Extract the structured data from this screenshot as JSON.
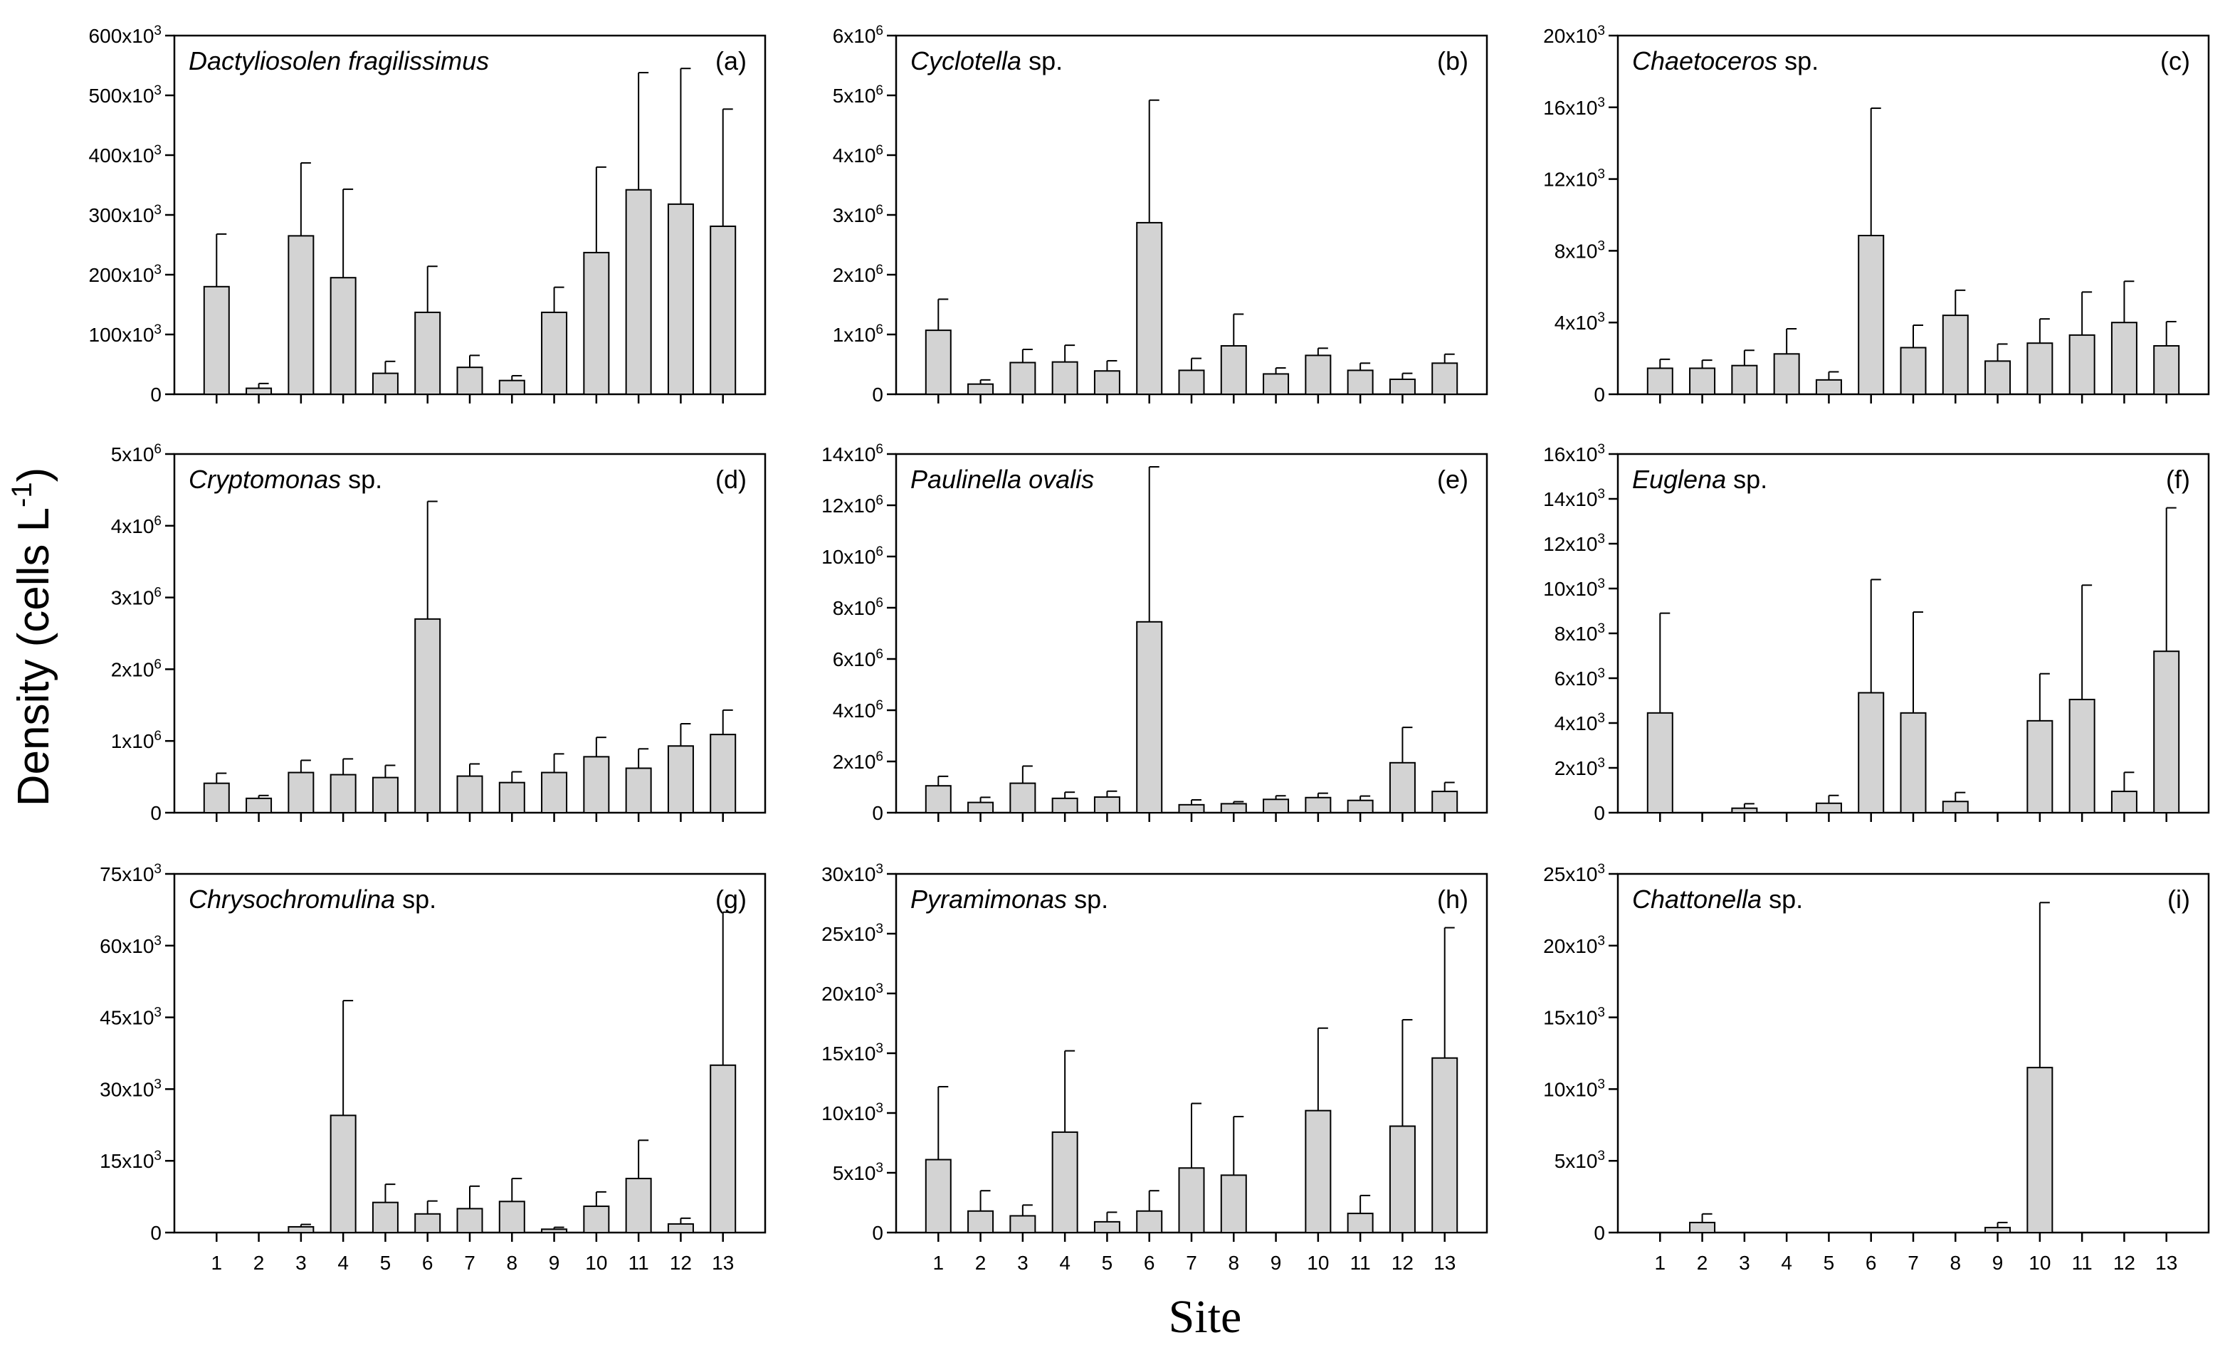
{
  "figure": {
    "ylabel": "Density (cells L",
    "ylabel_sup": "-1",
    "ylabel_close": ")",
    "xlabel": "Site"
  },
  "chart_data": [
    {
      "type": "bar",
      "letter": "(a)",
      "title_italic": "Dactyliosolen fragilissimus",
      "title_plain": "",
      "categories": [
        "1",
        "2",
        "3",
        "4",
        "5",
        "6",
        "7",
        "8",
        "9",
        "10",
        "11",
        "12",
        "13"
      ],
      "values": [
        180000,
        10000,
        265000,
        195000,
        35000,
        137000,
        45000,
        23000,
        137000,
        237000,
        342000,
        318000,
        281000
      ],
      "error_plus": [
        88000,
        8000,
        122000,
        148000,
        20000,
        77000,
        20000,
        8000,
        42000,
        143000,
        196000,
        227000,
        196000
      ],
      "ylim": [
        0,
        600000
      ],
      "yticks": [
        0,
        100000,
        200000,
        300000,
        400000,
        500000,
        600000
      ],
      "ytick_labels": [
        {
          "m": "0",
          "e": ""
        },
        {
          "m": "100x10",
          "e": "3"
        },
        {
          "m": "200x10",
          "e": "3"
        },
        {
          "m": "300x10",
          "e": "3"
        },
        {
          "m": "400x10",
          "e": "3"
        },
        {
          "m": "500x10",
          "e": "3"
        },
        {
          "m": "600x10",
          "e": "3"
        }
      ],
      "show_x_labels": false
    },
    {
      "type": "bar",
      "letter": "(b)",
      "title_italic": "Cyclotella",
      "title_plain": " sp.",
      "categories": [
        "1",
        "2",
        "3",
        "4",
        "5",
        "6",
        "7",
        "8",
        "9",
        "10",
        "11",
        "12",
        "13"
      ],
      "values": [
        1070000,
        170000,
        530000,
        540000,
        390000,
        2870000,
        400000,
        810000,
        340000,
        650000,
        400000,
        250000,
        520000
      ],
      "error_plus": [
        520000,
        70000,
        220000,
        280000,
        170000,
        2050000,
        200000,
        530000,
        100000,
        120000,
        120000,
        100000,
        150000
      ],
      "ylim": [
        0,
        6000000
      ],
      "yticks": [
        0,
        1000000,
        2000000,
        3000000,
        4000000,
        5000000,
        6000000
      ],
      "ytick_labels": [
        {
          "m": "0",
          "e": ""
        },
        {
          "m": "1x10",
          "e": "6"
        },
        {
          "m": "2x10",
          "e": "6"
        },
        {
          "m": "3x10",
          "e": "6"
        },
        {
          "m": "4x10",
          "e": "6"
        },
        {
          "m": "5x10",
          "e": "6"
        },
        {
          "m": "6x10",
          "e": "6"
        }
      ],
      "show_x_labels": false
    },
    {
      "type": "bar",
      "letter": "(c)",
      "title_italic": "Chaetoceros",
      "title_plain": "  sp.",
      "categories": [
        "1",
        "2",
        "3",
        "4",
        "5",
        "6",
        "7",
        "8",
        "9",
        "10",
        "11",
        "12",
        "13"
      ],
      "values": [
        1450,
        1450,
        1600,
        2250,
        800,
        8850,
        2600,
        4400,
        1850,
        2850,
        3300,
        4000,
        2700
      ],
      "error_plus": [
        500,
        450,
        850,
        1400,
        450,
        7100,
        1250,
        1400,
        950,
        1350,
        2400,
        2300,
        1350
      ],
      "ylim": [
        0,
        20000
      ],
      "yticks": [
        0,
        4000,
        8000,
        12000,
        16000,
        20000
      ],
      "ytick_labels": [
        {
          "m": "0",
          "e": ""
        },
        {
          "m": "4x10",
          "e": "3"
        },
        {
          "m": "8x10",
          "e": "3"
        },
        {
          "m": "12x10",
          "e": "3"
        },
        {
          "m": "16x10",
          "e": "3"
        },
        {
          "m": "20x10",
          "e": "3"
        }
      ],
      "show_x_labels": false
    },
    {
      "type": "bar",
      "letter": "(d)",
      "title_italic": "Cryptomonas",
      "title_plain": " sp.",
      "categories": [
        "1",
        "2",
        "3",
        "4",
        "5",
        "6",
        "7",
        "8",
        "9",
        "10",
        "11",
        "12",
        "13"
      ],
      "values": [
        410000,
        200000,
        560000,
        530000,
        490000,
        2700000,
        510000,
        420000,
        560000,
        780000,
        620000,
        930000,
        1090000
      ],
      "error_plus": [
        140000,
        40000,
        170000,
        220000,
        170000,
        1640000,
        170000,
        150000,
        260000,
        270000,
        270000,
        310000,
        340000
      ],
      "ylim": [
        0,
        5000000
      ],
      "yticks": [
        0,
        1000000,
        2000000,
        3000000,
        4000000,
        5000000
      ],
      "ytick_labels": [
        {
          "m": "0",
          "e": ""
        },
        {
          "m": "1x10",
          "e": "6"
        },
        {
          "m": "2x10",
          "e": "6"
        },
        {
          "m": "3x10",
          "e": "6"
        },
        {
          "m": "4x10",
          "e": "6"
        },
        {
          "m": "5x10",
          "e": "6"
        }
      ],
      "show_x_labels": false
    },
    {
      "type": "bar",
      "letter": "(e)",
      "title_italic": "Paulinella ovalis",
      "title_plain": "",
      "categories": [
        "1",
        "2",
        "3",
        "4",
        "5",
        "6",
        "7",
        "8",
        "9",
        "10",
        "11",
        "12",
        "13"
      ],
      "values": [
        1050000,
        400000,
        1150000,
        560000,
        610000,
        7450000,
        310000,
        350000,
        520000,
        590000,
        480000,
        1950000,
        830000
      ],
      "error_plus": [
        370000,
        200000,
        670000,
        240000,
        230000,
        6050000,
        190000,
        80000,
        140000,
        170000,
        170000,
        1380000,
        350000
      ],
      "ylim": [
        0,
        14000000
      ],
      "yticks": [
        0,
        2000000,
        4000000,
        6000000,
        8000000,
        10000000,
        12000000,
        14000000
      ],
      "ytick_labels": [
        {
          "m": "0",
          "e": ""
        },
        {
          "m": "2x10",
          "e": "6"
        },
        {
          "m": "4x10",
          "e": "6"
        },
        {
          "m": "6x10",
          "e": "6"
        },
        {
          "m": "8x10",
          "e": "6"
        },
        {
          "m": "10x10",
          "e": "6"
        },
        {
          "m": "12x10",
          "e": "6"
        },
        {
          "m": "14x10",
          "e": "6"
        }
      ],
      "show_x_labels": false
    },
    {
      "type": "bar",
      "letter": "(f)",
      "title_italic": "Euglena",
      "title_plain": " sp.",
      "categories": [
        "1",
        "2",
        "3",
        "4",
        "5",
        "6",
        "7",
        "8",
        "9",
        "10",
        "11",
        "12",
        "13"
      ],
      "values": [
        4450,
        0,
        200,
        0,
        420,
        5350,
        4450,
        500,
        0,
        4100,
        5050,
        950,
        7200
      ],
      "error_plus": [
        4450,
        0,
        200,
        0,
        350,
        5050,
        4500,
        400,
        0,
        2100,
        5100,
        850,
        6400
      ],
      "ylim": [
        0,
        16000
      ],
      "yticks": [
        0,
        2000,
        4000,
        6000,
        8000,
        10000,
        12000,
        14000,
        16000
      ],
      "ytick_labels": [
        {
          "m": "0",
          "e": ""
        },
        {
          "m": "2x10",
          "e": "3"
        },
        {
          "m": "4x10",
          "e": "3"
        },
        {
          "m": "6x10",
          "e": "3"
        },
        {
          "m": "8x10",
          "e": "3"
        },
        {
          "m": "10x10",
          "e": "3"
        },
        {
          "m": "12x10",
          "e": "3"
        },
        {
          "m": "14x10",
          "e": "3"
        },
        {
          "m": "16x10",
          "e": "3"
        }
      ],
      "show_x_labels": false
    },
    {
      "type": "bar",
      "letter": "(g)",
      "title_italic": "Chrysochromulina",
      "title_plain": " sp.",
      "categories": [
        "1",
        "2",
        "3",
        "4",
        "5",
        "6",
        "7",
        "8",
        "9",
        "10",
        "11",
        "12",
        "13"
      ],
      "values": [
        0,
        0,
        1200,
        24500,
        6300,
        3900,
        5000,
        6500,
        700,
        5500,
        11300,
        1800,
        35000
      ],
      "error_plus": [
        0,
        0,
        500,
        24000,
        3800,
        2700,
        4700,
        4800,
        400,
        3000,
        8000,
        1200,
        32000
      ],
      "ylim": [
        0,
        75000
      ],
      "yticks": [
        0,
        15000,
        30000,
        45000,
        60000,
        75000
      ],
      "ytick_labels": [
        {
          "m": "0",
          "e": ""
        },
        {
          "m": "15x10",
          "e": "3"
        },
        {
          "m": "30x10",
          "e": "3"
        },
        {
          "m": "45x10",
          "e": "3"
        },
        {
          "m": "60x10",
          "e": "3"
        },
        {
          "m": "75x10",
          "e": "3"
        }
      ],
      "show_x_labels": true
    },
    {
      "type": "bar",
      "letter": "(h)",
      "title_italic": "Pyramimonas",
      "title_plain": " sp.",
      "categories": [
        "1",
        "2",
        "3",
        "4",
        "5",
        "6",
        "7",
        "8",
        "9",
        "10",
        "11",
        "12",
        "13"
      ],
      "values": [
        6100,
        1800,
        1400,
        8400,
        900,
        1800,
        5400,
        4800,
        0,
        10200,
        1600,
        8900,
        14600
      ],
      "error_plus": [
        6100,
        1700,
        900,
        6800,
        800,
        1700,
        5400,
        4900,
        0,
        6900,
        1500,
        8900,
        10900
      ],
      "ylim": [
        0,
        30000
      ],
      "yticks": [
        0,
        5000,
        10000,
        15000,
        20000,
        25000,
        30000
      ],
      "ytick_labels": [
        {
          "m": "0",
          "e": ""
        },
        {
          "m": "5x10",
          "e": "3"
        },
        {
          "m": "10x10",
          "e": "3"
        },
        {
          "m": "15x10",
          "e": "3"
        },
        {
          "m": "20x10",
          "e": "3"
        },
        {
          "m": "25x10",
          "e": "3"
        },
        {
          "m": "30x10",
          "e": "3"
        }
      ],
      "show_x_labels": true
    },
    {
      "type": "bar",
      "letter": "(i)",
      "title_italic": "Chattonella",
      "title_plain": " sp.",
      "categories": [
        "1",
        "2",
        "3",
        "4",
        "5",
        "6",
        "7",
        "8",
        "9",
        "10",
        "11",
        "12",
        "13"
      ],
      "values": [
        0,
        700,
        0,
        0,
        0,
        0,
        0,
        0,
        350,
        11500,
        0,
        0,
        0
      ],
      "error_plus": [
        0,
        600,
        0,
        0,
        0,
        0,
        0,
        0,
        350,
        11500,
        0,
        0,
        0
      ],
      "ylim": [
        0,
        25000
      ],
      "yticks": [
        0,
        5000,
        10000,
        15000,
        20000,
        25000
      ],
      "ytick_labels": [
        {
          "m": "0",
          "e": ""
        },
        {
          "m": "5x10",
          "e": "3"
        },
        {
          "m": "10x10",
          "e": "3"
        },
        {
          "m": "15x10",
          "e": "3"
        },
        {
          "m": "20x10",
          "e": "3"
        },
        {
          "m": "25x10",
          "e": "3"
        }
      ],
      "show_x_labels": true
    }
  ]
}
